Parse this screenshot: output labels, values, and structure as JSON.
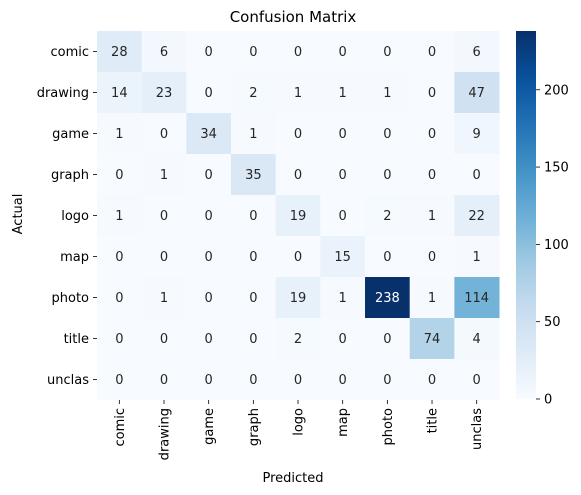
{
  "chart_data": {
    "type": "heatmap",
    "title": "Confusion Matrix",
    "xlabel": "Predicted",
    "ylabel": "Actual",
    "x_categories": [
      "comic",
      "drawing",
      "game",
      "graph",
      "logo",
      "map",
      "photo",
      "title",
      "unclas"
    ],
    "y_categories": [
      "comic",
      "drawing",
      "game",
      "graph",
      "logo",
      "map",
      "photo",
      "title",
      "unclas"
    ],
    "values": [
      [
        28,
        6,
        0,
        0,
        0,
        0,
        0,
        0,
        6
      ],
      [
        14,
        23,
        0,
        2,
        1,
        1,
        1,
        0,
        47
      ],
      [
        1,
        0,
        34,
        1,
        0,
        0,
        0,
        0,
        9
      ],
      [
        0,
        1,
        0,
        35,
        0,
        0,
        0,
        0,
        0
      ],
      [
        1,
        0,
        0,
        0,
        19,
        0,
        2,
        1,
        22
      ],
      [
        0,
        0,
        0,
        0,
        0,
        15,
        0,
        0,
        1
      ],
      [
        0,
        1,
        0,
        0,
        19,
        1,
        238,
        1,
        114
      ],
      [
        0,
        0,
        0,
        0,
        2,
        0,
        0,
        74,
        4
      ],
      [
        0,
        0,
        0,
        0,
        0,
        0,
        0,
        0,
        0
      ]
    ],
    "colorscale": "Blues",
    "vmin": 0,
    "vmax": 238,
    "colorbar_ticks": [
      0,
      50,
      100,
      150,
      200
    ],
    "grid": false
  }
}
